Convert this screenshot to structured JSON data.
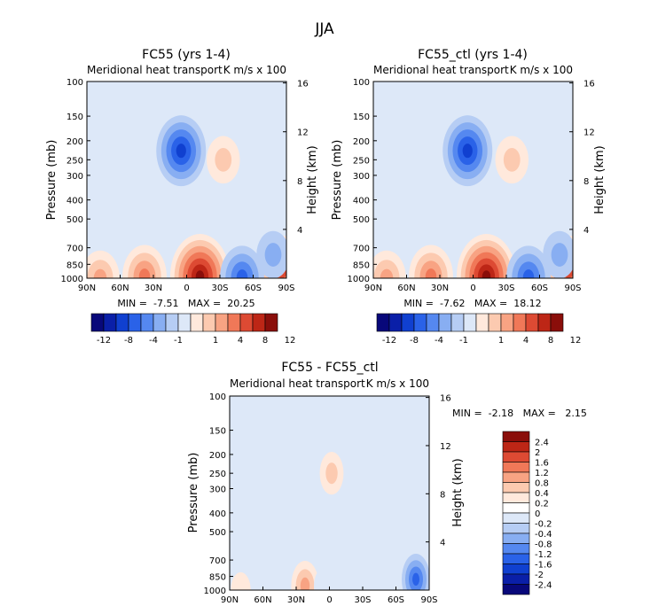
{
  "page_title": "JJA",
  "colors": {
    "full_scale": [
      "#08087a",
      "#0a1fa8",
      "#1040d0",
      "#2a62e8",
      "#5588f0",
      "#88aef2",
      "#b6cdf4",
      "#dde8f8",
      "#ffe9dc",
      "#fccab0",
      "#f8a383",
      "#f07858",
      "#dd4a33",
      "#bd2616",
      "#8a0e0a"
    ],
    "diff_scale": [
      "#08087a",
      "#0a1fa8",
      "#1040d0",
      "#2a62e8",
      "#5588f0",
      "#88aef2",
      "#b6cdf4",
      "#dde8f8",
      "#ffffff",
      "#ffe9dc",
      "#fccab0",
      "#f8a383",
      "#f07858",
      "#dd4a33",
      "#bd2616",
      "#8a0e0a"
    ]
  },
  "chart_data": [
    {
      "type": "heatmap",
      "name": "fc55",
      "title": "FC55 (yrs 1-4)",
      "subtitle_left": "Meridional heat transport",
      "subtitle_right": "K m/s x 100",
      "xlabel": "",
      "ylabel": "Pressure (mb)",
      "y2label": "Height (km)",
      "x_ticks": [
        "90N",
        "60N",
        "30N",
        "0",
        "30S",
        "60S",
        "90S"
      ],
      "y_ticks": [
        1000,
        850,
        700,
        500,
        400,
        300,
        250,
        200,
        150,
        100
      ],
      "y2_ticks": [
        4,
        8,
        12,
        16
      ],
      "stats_text": "MIN =  -7.51   MAX =  20.25",
      "colorbar_labels": [
        "-12",
        "-8",
        "-4",
        "-1",
        "1",
        "4",
        "8",
        "12"
      ],
      "features": [
        {
          "kind": "max",
          "lat": -12,
          "p": 980,
          "value": 20.25
        },
        {
          "kind": "max",
          "lat": 38,
          "p": 980,
          "value": 6
        },
        {
          "kind": "max",
          "lat": 78,
          "p": 1000,
          "value": 3
        },
        {
          "kind": "max",
          "lat": -86,
          "p": 920,
          "value": 8
        },
        {
          "kind": "max",
          "lat": -33,
          "p": 250,
          "value": 1.5
        },
        {
          "kind": "min",
          "lat": 5,
          "p": 225,
          "value": -7.51
        },
        {
          "kind": "min",
          "lat": -50,
          "p": 990,
          "value": -4
        },
        {
          "kind": "min",
          "lat": -78,
          "p": 760,
          "value": -1.5
        }
      ]
    },
    {
      "type": "heatmap",
      "name": "fc55-ctl",
      "title": "FC55_ctl (yrs 1-4)",
      "subtitle_left": "Meridional heat transport",
      "subtitle_right": "K m/s x 100",
      "xlabel": "",
      "ylabel": "Pressure (mb)",
      "y2label": "Height (km)",
      "x_ticks": [
        "90N",
        "60N",
        "30N",
        "0",
        "30S",
        "60S",
        "90S"
      ],
      "y_ticks": [
        1000,
        850,
        700,
        500,
        400,
        300,
        250,
        200,
        150,
        100
      ],
      "y2_ticks": [
        4,
        8,
        12,
        16
      ],
      "stats_text": "MIN =  -7.62   MAX =  18.12",
      "colorbar_labels": [
        "-12",
        "-8",
        "-4",
        "-1",
        "1",
        "4",
        "8",
        "12"
      ],
      "features": [
        {
          "kind": "max",
          "lat": -12,
          "p": 980,
          "value": 18.12
        },
        {
          "kind": "max",
          "lat": 38,
          "p": 980,
          "value": 6
        },
        {
          "kind": "max",
          "lat": 78,
          "p": 1000,
          "value": 3
        },
        {
          "kind": "max",
          "lat": -86,
          "p": 920,
          "value": 8
        },
        {
          "kind": "max",
          "lat": -35,
          "p": 250,
          "value": 1.5
        },
        {
          "kind": "min",
          "lat": 5,
          "p": 225,
          "value": -7.62
        },
        {
          "kind": "min",
          "lat": -50,
          "p": 990,
          "value": -4
        },
        {
          "kind": "min",
          "lat": -78,
          "p": 760,
          "value": -1.5
        }
      ]
    },
    {
      "type": "heatmap",
      "name": "difference",
      "title": "FC55 - FC55_ctl",
      "subtitle_left": "Meridional heat transport",
      "subtitle_right": "K m/s x 100",
      "xlabel": "",
      "ylabel": "Pressure (mb)",
      "y2label": "Height (km)",
      "x_ticks": [
        "90N",
        "60N",
        "30N",
        "0",
        "30S",
        "60S",
        "90S"
      ],
      "y_ticks": [
        1000,
        850,
        700,
        500,
        400,
        300,
        250,
        200,
        150,
        100
      ],
      "y2_ticks": [
        4,
        8,
        12,
        16
      ],
      "stats_text": "MIN =  -2.18   MAX =   2.15",
      "colorbar_labels": [
        "2.4",
        "2",
        "1.6",
        "1.2",
        "0.8",
        "0.4",
        "0.2",
        "0",
        "-0.2",
        "-0.4",
        "-0.8",
        "-1.2",
        "-1.6",
        "-2",
        "-2.4"
      ],
      "features": [
        {
          "kind": "max",
          "lat": -2,
          "p": 250,
          "value": 0.8
        },
        {
          "kind": "max",
          "lat": 22,
          "p": 950,
          "value": 1.2
        },
        {
          "kind": "max",
          "lat": 80,
          "p": 1000,
          "value": 0.6
        },
        {
          "kind": "min",
          "lat": -78,
          "p": 880,
          "value": -2.18
        },
        {
          "kind": "min",
          "lat": -50,
          "p": 250,
          "value": -0.3
        },
        {
          "kind": "min",
          "lat": 5,
          "p": 950,
          "value": -0.4
        }
      ]
    }
  ]
}
